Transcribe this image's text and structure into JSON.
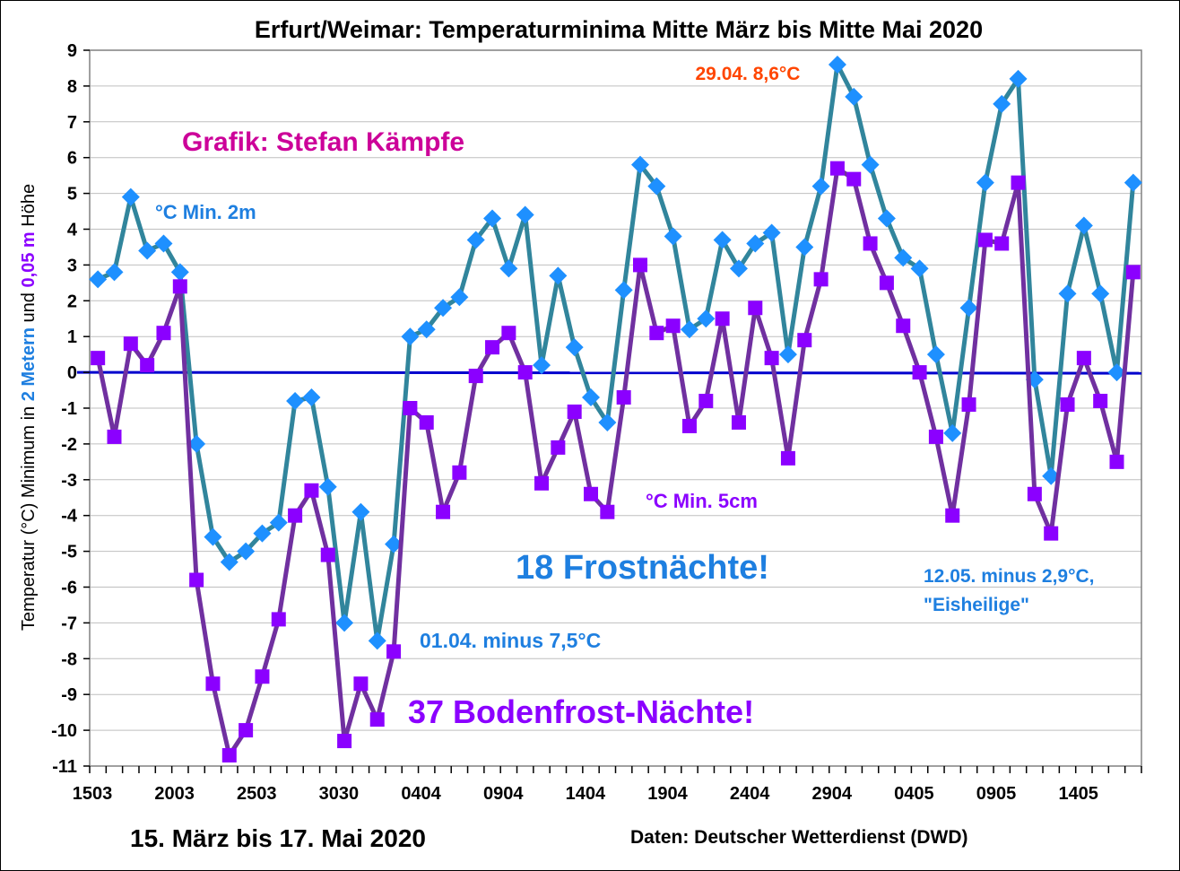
{
  "chart_data": {
    "type": "line",
    "title": "Erfurt/Weimar: Temperaturminima Mitte März bis Mitte Mai 2020",
    "ylabel": {
      "part1": "Temperatur (°C) Minimum in ",
      "part2": "2 Metern",
      "part3": " und ",
      "part4": "0,05 m",
      "part5": " Höhe"
    },
    "xlabel": "15. März bis 17. Mai 2020",
    "source": "Daten: Deutscher Wetterdienst (DWD)",
    "ylim": [
      -11,
      9
    ],
    "yticks": [
      "9",
      "8",
      "7",
      "6",
      "5",
      "4",
      "3",
      "2",
      "1",
      "0",
      "-1",
      "-2",
      "-3",
      "-4",
      "-5",
      "-6",
      "-7",
      "-8",
      "-9",
      "-10",
      "-11"
    ],
    "xticks": [
      "1503",
      "2003",
      "2503",
      "3030",
      "0404",
      "0904",
      "1404",
      "1904",
      "2404",
      "2904",
      "0405",
      "0905",
      "1405"
    ],
    "grid": true,
    "series": [
      {
        "name": "°C Min. 2m",
        "color": "#31859C",
        "marker_color": "#1E90FF",
        "marker": "diamond",
        "values": [
          2.6,
          2.8,
          4.9,
          3.4,
          3.6,
          2.8,
          -2.0,
          -4.6,
          -5.3,
          -5.0,
          -4.5,
          -4.2,
          -0.8,
          -0.7,
          -3.2,
          -7.0,
          -3.9,
          -7.5,
          -4.8,
          1.0,
          1.2,
          1.8,
          2.1,
          3.7,
          4.3,
          2.9,
          4.4,
          0.2,
          2.7,
          0.7,
          -0.7,
          -1.4,
          2.3,
          5.8,
          5.2,
          3.8,
          1.2,
          1.5,
          3.7,
          2.9,
          3.6,
          3.9,
          0.5,
          3.5,
          5.2,
          8.6,
          7.7,
          5.8,
          4.3,
          3.2,
          2.9,
          0.5,
          -1.7,
          1.8,
          5.3,
          7.5,
          8.2,
          -0.2,
          -2.9,
          2.2,
          4.1,
          2.2,
          0.0,
          5.3
        ]
      },
      {
        "name": "°C Min. 5cm",
        "color": "#7030A0",
        "marker_color": "#8B00FF",
        "marker": "square",
        "values": [
          0.4,
          -1.8,
          0.8,
          0.2,
          1.1,
          2.4,
          -5.8,
          -8.7,
          -10.7,
          -10.0,
          -8.5,
          -6.9,
          -4.0,
          -3.3,
          -5.1,
          -10.3,
          -8.7,
          -9.7,
          -7.8,
          -1.0,
          -1.4,
          -3.9,
          -2.8,
          -0.1,
          0.7,
          1.1,
          0.0,
          -3.1,
          -2.1,
          -1.1,
          -3.4,
          -3.9,
          -0.7,
          3.0,
          1.1,
          1.3,
          -1.5,
          -0.8,
          1.5,
          -1.4,
          1.8,
          0.4,
          -2.4,
          0.9,
          2.6,
          5.7,
          5.4,
          3.6,
          2.5,
          1.3,
          0.0,
          -1.8,
          -4.0,
          -0.9,
          3.7,
          3.6,
          5.3,
          -3.4,
          -4.5,
          -0.9,
          0.4,
          -0.8,
          -2.5,
          2.8
        ]
      }
    ],
    "annotations": {
      "max": "29.04. 8,6°C",
      "author": "Grafik: Stefan Kämpfe",
      "label_2m": "°C Min. 2m",
      "label_5cm": "°C Min. 5cm",
      "frost": "18 Frostnächte!",
      "eisheilige_1": "12.05. minus 2,9°C,",
      "eisheilige_2": "\"Eisheilige\"",
      "min_2m": "01.04. minus 7,5°C",
      "bodenfrost": "37 Bodenfrost-Nächte!"
    },
    "annotation_colors": {
      "max": "#FF4500",
      "author": "#CC0099",
      "label_2m": "#1E7FE0",
      "label_5cm": "#8B00FF",
      "frost": "#1E7FE0",
      "eisheilige": "#1E7FE0",
      "min_2m": "#1E7FE0",
      "bodenfrost": "#8B00FF"
    },
    "zero_line_color": "#0000CD"
  }
}
